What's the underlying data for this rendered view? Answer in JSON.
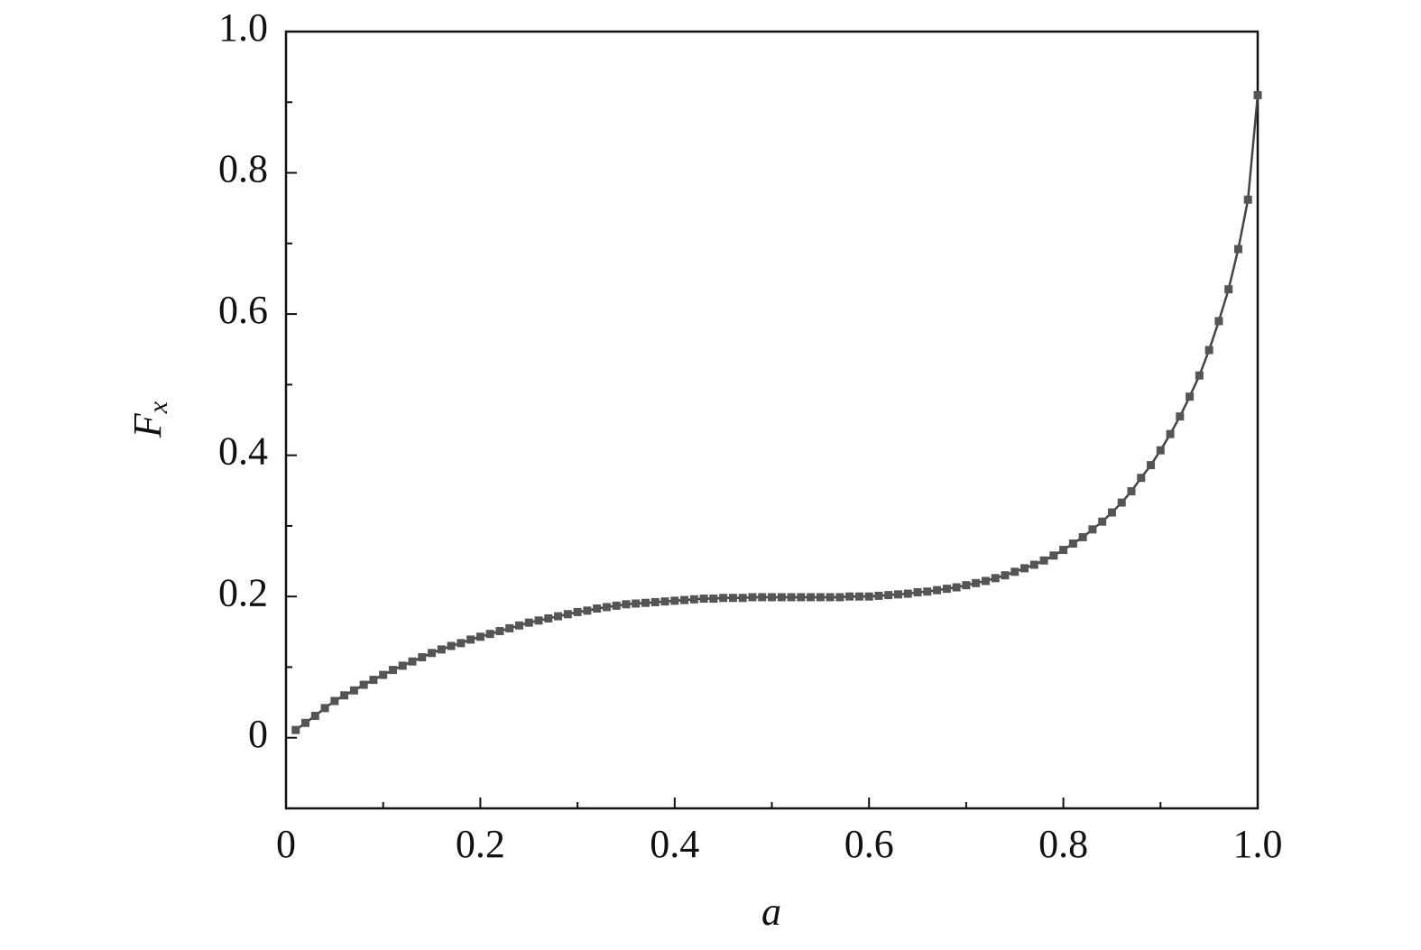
{
  "chart_data": {
    "type": "line",
    "xlabel": "a",
    "ylabel": "F",
    "ylabel_subscript": "x",
    "x": [
      0.01,
      0.02,
      0.03,
      0.04,
      0.05,
      0.06,
      0.07,
      0.08,
      0.09,
      0.1,
      0.11,
      0.12,
      0.13,
      0.14,
      0.15,
      0.16,
      0.17,
      0.18,
      0.19,
      0.2,
      0.21,
      0.22,
      0.23,
      0.24,
      0.25,
      0.26,
      0.27,
      0.28,
      0.29,
      0.3,
      0.31,
      0.32,
      0.33,
      0.34,
      0.35,
      0.36,
      0.37,
      0.38,
      0.39,
      0.4,
      0.41,
      0.42,
      0.43,
      0.44,
      0.45,
      0.46,
      0.47,
      0.48,
      0.49,
      0.5,
      0.51,
      0.52,
      0.53,
      0.54,
      0.55,
      0.56,
      0.57,
      0.58,
      0.59,
      0.6,
      0.61,
      0.62,
      0.63,
      0.64,
      0.65,
      0.66,
      0.67,
      0.68,
      0.69,
      0.7,
      0.71,
      0.72,
      0.73,
      0.74,
      0.75,
      0.76,
      0.77,
      0.78,
      0.79,
      0.8,
      0.81,
      0.82,
      0.83,
      0.84,
      0.85,
      0.86,
      0.87,
      0.88,
      0.89,
      0.9,
      0.91,
      0.92,
      0.93,
      0.94,
      0.95,
      0.96,
      0.97,
      0.98,
      0.99,
      1.0
    ],
    "values": [
      0.011,
      0.021,
      0.031,
      0.042,
      0.052,
      0.06,
      0.067,
      0.075,
      0.082,
      0.089,
      0.096,
      0.102,
      0.108,
      0.114,
      0.12,
      0.125,
      0.13,
      0.134,
      0.139,
      0.143,
      0.147,
      0.151,
      0.155,
      0.159,
      0.163,
      0.166,
      0.169,
      0.172,
      0.175,
      0.178,
      0.18,
      0.183,
      0.185,
      0.187,
      0.189,
      0.19,
      0.191,
      0.192,
      0.193,
      0.194,
      0.195,
      0.196,
      0.197,
      0.197,
      0.198,
      0.198,
      0.198,
      0.199,
      0.199,
      0.199,
      0.199,
      0.199,
      0.199,
      0.199,
      0.199,
      0.199,
      0.199,
      0.2,
      0.2,
      0.2,
      0.201,
      0.202,
      0.203,
      0.204,
      0.206,
      0.207,
      0.209,
      0.211,
      0.213,
      0.216,
      0.219,
      0.222,
      0.226,
      0.23,
      0.235,
      0.24,
      0.245,
      0.251,
      0.258,
      0.266,
      0.275,
      0.284,
      0.295,
      0.306,
      0.319,
      0.333,
      0.349,
      0.368,
      0.386,
      0.407,
      0.43,
      0.455,
      0.483,
      0.513,
      0.549,
      0.59,
      0.635,
      0.692,
      0.762,
      0.91
    ],
    "color": "#555555",
    "xlim": [
      0,
      1
    ],
    "ylim": [
      -0.1,
      1
    ],
    "xticks": [
      0,
      0.2,
      0.4,
      0.6,
      0.8,
      {
        "value": 1,
        "label": "1.0"
      }
    ],
    "yticks": [
      0,
      0.2,
      0.4,
      0.6,
      0.8,
      {
        "value": 1,
        "label": "1.0"
      }
    ],
    "xminorticks": [
      0.1,
      0.3,
      0.5,
      0.7,
      0.9
    ],
    "yminorticks": [
      0.1,
      0.3,
      0.5,
      0.7,
      0.9
    ]
  }
}
